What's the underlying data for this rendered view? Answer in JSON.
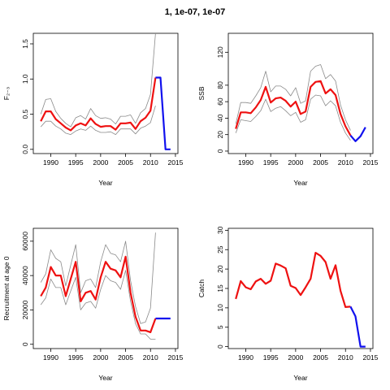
{
  "figure": {
    "title": "1, 1e-07, 1e-07"
  },
  "colors": {
    "estimate": "#ee1111",
    "forecast": "#1111ee",
    "interval": "#8a8a8a"
  },
  "chart_data": [
    {
      "id": "F",
      "type": "line",
      "title": "",
      "xlabel": "Year",
      "ylabel": "F₂₋₃",
      "xlim": [
        1986.5,
        2015.5
      ],
      "ylim": [
        -0.06,
        1.65
      ],
      "xticks": [
        "1990",
        "1995",
        "2000",
        "2005",
        "2010",
        "2015"
      ],
      "yticks": [
        "0.0",
        "0.5",
        "1.0",
        "1.5"
      ],
      "grid": false,
      "legend": "none",
      "series": [
        {
          "role": "estimate",
          "x": [
            1988,
            1989,
            1990,
            1991,
            1992,
            1993,
            1994,
            1995,
            1996,
            1997,
            1998,
            1999,
            2000,
            2001,
            2002,
            2003,
            2004,
            2005,
            2006,
            2007,
            2008,
            2009,
            2010,
            2011
          ],
          "y": [
            0.4,
            0.54,
            0.54,
            0.43,
            0.37,
            0.31,
            0.27,
            0.34,
            0.37,
            0.34,
            0.44,
            0.36,
            0.32,
            0.33,
            0.33,
            0.28,
            0.37,
            0.37,
            0.38,
            0.29,
            0.4,
            0.45,
            0.55,
            1.02
          ]
        },
        {
          "role": "forecast",
          "x": [
            2011,
            2012,
            2013,
            2014
          ],
          "y": [
            1.02,
            1.02,
            0.0,
            0.0
          ]
        },
        {
          "role": "interval-upper",
          "x": [
            1988,
            1989,
            1990,
            1991,
            1992,
            1993,
            1994,
            1995,
            1996,
            1997,
            1998,
            1999,
            2000,
            2001,
            2002,
            2003,
            2004,
            2005,
            2006,
            2007,
            2008,
            2009,
            2010,
            2011
          ],
          "y": [
            0.5,
            0.71,
            0.72,
            0.54,
            0.44,
            0.37,
            0.32,
            0.45,
            0.48,
            0.43,
            0.58,
            0.48,
            0.44,
            0.45,
            0.43,
            0.36,
            0.47,
            0.47,
            0.49,
            0.37,
            0.52,
            0.58,
            0.78,
            1.65
          ]
        },
        {
          "role": "interval-lower",
          "x": [
            1988,
            1989,
            1990,
            1991,
            1992,
            1993,
            1994,
            1995,
            1996,
            1997,
            1998,
            1999,
            2000,
            2001,
            2002,
            2003,
            2004,
            2005,
            2006,
            2007,
            2008,
            2009,
            2010,
            2011
          ],
          "y": [
            0.32,
            0.4,
            0.4,
            0.33,
            0.29,
            0.23,
            0.21,
            0.26,
            0.29,
            0.27,
            0.33,
            0.27,
            0.24,
            0.24,
            0.25,
            0.21,
            0.29,
            0.29,
            0.29,
            0.22,
            0.3,
            0.33,
            0.38,
            0.62
          ]
        }
      ]
    },
    {
      "id": "SSB",
      "type": "line",
      "title": "",
      "xlabel": "Year",
      "ylabel": "SSB",
      "xlim": [
        1986.5,
        2015.5
      ],
      "ylim": [
        -3,
        143
      ],
      "xticks": [
        "1990",
        "1995",
        "2000",
        "2005",
        "2010",
        "2015"
      ],
      "yticks": [
        "0",
        "20",
        "40",
        "60",
        "80",
        "120"
      ],
      "grid": false,
      "legend": "none",
      "series": [
        {
          "role": "estimate",
          "x": [
            1988,
            1989,
            1990,
            1991,
            1992,
            1993,
            1994,
            1995,
            1996,
            1997,
            1998,
            1999,
            2000,
            2001,
            2002,
            2003,
            2004,
            2005,
            2006,
            2007,
            2008,
            2009,
            2010,
            2011
          ],
          "y": [
            27,
            47,
            47,
            46,
            53,
            62,
            78,
            59,
            64,
            65,
            61,
            54,
            60,
            45,
            48,
            78,
            84,
            85,
            70,
            75,
            68,
            45,
            30,
            19
          ]
        },
        {
          "role": "forecast",
          "x": [
            2011,
            2012,
            2013,
            2014
          ],
          "y": [
            19,
            12,
            18,
            29
          ]
        },
        {
          "role": "interval-upper",
          "x": [
            1988,
            1989,
            1990,
            1991,
            1992,
            1993,
            1994,
            1995,
            1996,
            1997,
            1998,
            1999,
            2000,
            2001,
            2002,
            2003,
            2004,
            2005,
            2006,
            2007,
            2008,
            2009,
            2010,
            2011
          ],
          "y": [
            33,
            59,
            59,
            58,
            67,
            77,
            97,
            72,
            79,
            79,
            75,
            67,
            77,
            58,
            61,
            97,
            103,
            105,
            88,
            93,
            85,
            56,
            38,
            25
          ]
        },
        {
          "role": "interval-lower",
          "x": [
            1988,
            1989,
            1990,
            1991,
            1992,
            1993,
            1994,
            1995,
            1996,
            1997,
            1998,
            1999,
            2000,
            2001,
            2002,
            2003,
            2004,
            2005,
            2006,
            2007,
            2008,
            2009,
            2010,
            2011
          ],
          "y": [
            22,
            38,
            37,
            36,
            42,
            49,
            63,
            48,
            52,
            54,
            49,
            43,
            47,
            35,
            38,
            63,
            68,
            67,
            55,
            61,
            55,
            35,
            22,
            13
          ]
        }
      ]
    },
    {
      "id": "Recruitment",
      "type": "line",
      "title": "",
      "xlabel": "Year",
      "ylabel": "Recruitment at age 0",
      "xlim": [
        1986.5,
        2015.5
      ],
      "ylim": [
        -2500,
        67500
      ],
      "xticks": [
        "1990",
        "1995",
        "2000",
        "2005",
        "2010",
        "2015"
      ],
      "yticks": [
        "0",
        "20000",
        "40000",
        "60000"
      ],
      "grid": false,
      "legend": "none",
      "series": [
        {
          "role": "estimate",
          "x": [
            1988,
            1989,
            1990,
            1991,
            1992,
            1993,
            1994,
            1995,
            1996,
            1997,
            1998,
            1999,
            2000,
            2001,
            2002,
            2003,
            2004,
            2005,
            2006,
            2007,
            2008,
            2009,
            2010,
            2011
          ],
          "y": [
            28000,
            33000,
            45000,
            40000,
            40000,
            28000,
            38000,
            48000,
            25000,
            30000,
            31000,
            26000,
            39000,
            48000,
            44000,
            43000,
            39000,
            51000,
            30000,
            16000,
            8000,
            8000,
            7000,
            15000
          ]
        },
        {
          "role": "forecast",
          "x": [
            2011,
            2012,
            2013,
            2014
          ],
          "y": [
            15000,
            15000,
            15000,
            15000
          ]
        },
        {
          "role": "interval-upper",
          "x": [
            1988,
            1989,
            1990,
            1991,
            1992,
            1993,
            1994,
            1995,
            1996,
            1997,
            1998,
            1999,
            2000,
            2001,
            2002,
            2003,
            2004,
            2005,
            2006,
            2007,
            2008,
            2009,
            2010,
            2011
          ],
          "y": [
            36000,
            41000,
            55000,
            50000,
            48000,
            34000,
            46000,
            58000,
            30000,
            37000,
            38000,
            33000,
            48000,
            58000,
            53000,
            52000,
            48000,
            60000,
            37000,
            22000,
            12000,
            13000,
            21000,
            65000
          ]
        },
        {
          "role": "interval-lower",
          "x": [
            1988,
            1989,
            1990,
            1991,
            1992,
            1993,
            1994,
            1995,
            1996,
            1997,
            1998,
            1999,
            2000,
            2001,
            2002,
            2003,
            2004,
            2005,
            2006,
            2007,
            2008,
            2009,
            2010,
            2011
          ],
          "y": [
            23000,
            27000,
            38000,
            33000,
            33000,
            23000,
            31000,
            39000,
            20000,
            24000,
            25000,
            21000,
            32000,
            40000,
            37000,
            36000,
            32000,
            43000,
            25000,
            12000,
            6000,
            6000,
            3000,
            3000
          ]
        }
      ]
    },
    {
      "id": "Catch",
      "type": "line",
      "title": "",
      "xlabel": "Year",
      "ylabel": "Catch",
      "xlim": [
        1986.5,
        2015.5
      ],
      "ylim": [
        -0.5,
        30.5
      ],
      "xticks": [
        "1990",
        "1995",
        "2000",
        "2005",
        "2010",
        "2015"
      ],
      "yticks": [
        "0",
        "5",
        "10",
        "15",
        "20",
        "25",
        "30"
      ],
      "grid": false,
      "legend": "none",
      "series": [
        {
          "role": "estimate",
          "x": [
            1988,
            1989,
            1990,
            1991,
            1992,
            1993,
            1994,
            1995,
            1996,
            1997,
            1998,
            1999,
            2000,
            2001,
            2002,
            2003,
            2004,
            2005,
            2006,
            2007,
            2008,
            2009,
            2010,
            2011
          ],
          "y": [
            12.3,
            16.9,
            15.3,
            14.8,
            16.8,
            17.5,
            16.2,
            17.0,
            21.4,
            20.9,
            20.2,
            15.7,
            15.1,
            13.3,
            15.3,
            17.5,
            24.2,
            23.4,
            21.8,
            17.5,
            21.0,
            14.4,
            10.2,
            10.3
          ]
        },
        {
          "role": "forecast",
          "x": [
            2011,
            2012,
            2013,
            2014
          ],
          "y": [
            10.3,
            7.8,
            0,
            0
          ]
        }
      ]
    }
  ]
}
